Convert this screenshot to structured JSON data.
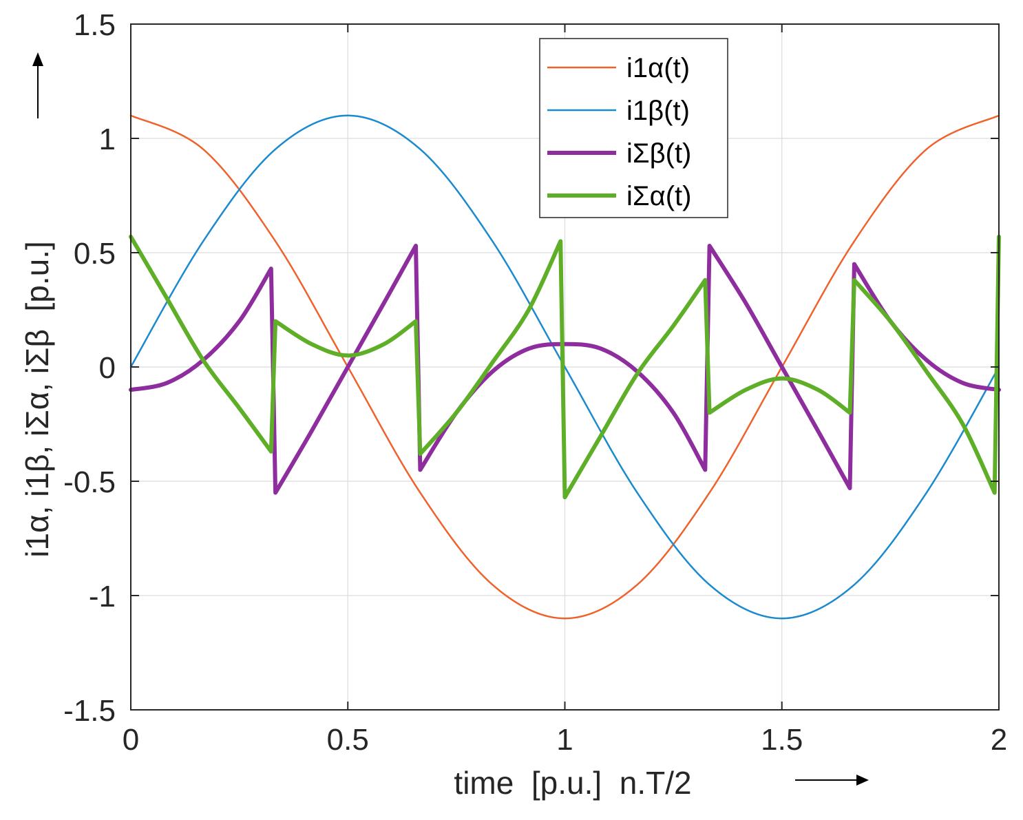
{
  "chart_data": {
    "type": "line",
    "xlabel": "time  [p.u.]  n.T/2",
    "ylabel": "i1α, i1β, iΣα, iΣβ  [p.u.]",
    "xlim": [
      0,
      2
    ],
    "ylim": [
      -1.5,
      1.5
    ],
    "xticks": [
      "0",
      "0.5",
      "1",
      "1.5",
      "2"
    ],
    "yticks": [
      "-1.5",
      "-1",
      "-0.5",
      "0",
      "0.5",
      "1",
      "1.5"
    ],
    "grid": true,
    "legend_position": "top-right",
    "series": [
      {
        "name": "i1α(t)",
        "color": "#f0622c",
        "width": 2.5,
        "x": [
          0,
          0.1667,
          0.3333,
          0.5,
          0.6667,
          0.8333,
          1.0,
          1.1667,
          1.3333,
          1.5,
          1.6667,
          1.8333,
          2.0
        ],
        "y": [
          1.1,
          0.9526,
          0.55,
          0.0,
          -0.55,
          -0.9526,
          -1.1,
          -0.9526,
          -0.55,
          0.0,
          0.55,
          0.9526,
          1.1
        ]
      },
      {
        "name": "i1β(t)",
        "color": "#1a8ad0",
        "width": 2.5,
        "x": [
          0,
          0.1667,
          0.3333,
          0.5,
          0.6667,
          0.8333,
          1.0,
          1.1667,
          1.3333,
          1.5,
          1.6667,
          1.8333,
          2.0
        ],
        "y": [
          0.0,
          0.55,
          0.9526,
          1.1,
          0.9526,
          0.55,
          0.0,
          -0.55,
          -0.9526,
          -1.1,
          -0.9526,
          -0.55,
          0.0
        ]
      },
      {
        "name": "iΣβ(t)",
        "color": "#8e2d9e",
        "width": 6,
        "x": [
          0,
          0.0833,
          0.1667,
          0.25,
          0.3233,
          0.3333,
          0.4167,
          0.5,
          0.5833,
          0.6567,
          0.6667,
          0.75,
          0.8333,
          0.9167,
          1.0,
          1.0833,
          1.1667,
          1.25,
          1.3233,
          1.3333,
          1.4167,
          1.5,
          1.5833,
          1.6567,
          1.6667,
          1.75,
          1.8333,
          1.9167,
          2.0
        ],
        "y": [
          -0.1,
          -0.07,
          0.03,
          0.2,
          0.43,
          -0.55,
          -0.28,
          0.0,
          0.28,
          0.53,
          -0.45,
          -0.2,
          -0.02,
          0.08,
          0.1,
          0.08,
          -0.02,
          -0.2,
          -0.45,
          0.53,
          0.28,
          0.0,
          -0.28,
          -0.53,
          0.45,
          0.2,
          0.03,
          -0.07,
          -0.1
        ]
      },
      {
        "name": "iΣα(t)",
        "color": "#5fae28",
        "width": 6,
        "x": [
          0,
          0.0833,
          0.1667,
          0.25,
          0.3233,
          0.3333,
          0.4167,
          0.5,
          0.5833,
          0.6567,
          0.6667,
          0.75,
          0.8333,
          0.9167,
          0.99,
          1.0,
          1.0833,
          1.1667,
          1.25,
          1.3233,
          1.3333,
          1.4167,
          1.5,
          1.5833,
          1.6567,
          1.6667,
          1.75,
          1.8333,
          1.9167,
          1.99,
          2.0
        ],
        "y": [
          0.57,
          0.3,
          0.03,
          -0.18,
          -0.37,
          0.2,
          0.1,
          0.05,
          0.1,
          0.2,
          -0.38,
          -0.2,
          0.02,
          0.25,
          0.55,
          -0.57,
          -0.3,
          -0.03,
          0.18,
          0.38,
          -0.2,
          -0.1,
          -0.05,
          -0.1,
          -0.2,
          0.38,
          0.2,
          -0.02,
          -0.25,
          -0.55,
          0.57
        ]
      }
    ]
  }
}
